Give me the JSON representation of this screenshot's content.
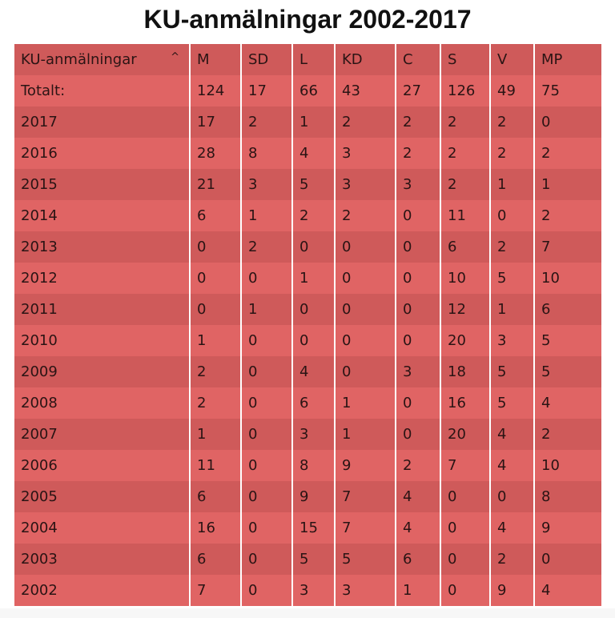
{
  "title": "KU-anmälningar 2002-2017",
  "colors": {
    "header_bg": "#cf5a5a",
    "row_odd": "#e06464",
    "row_even": "#cf5a5a",
    "separator": "#ffffff"
  },
  "table": {
    "sort_icon": "chevron-up-icon",
    "sort_glyph": "^",
    "columns": [
      "KU-anmälningar",
      "M",
      "SD",
      "L",
      "KD",
      "C",
      "S",
      "V",
      "MP"
    ],
    "rows": [
      [
        "Totalt:",
        "124",
        "17",
        "66",
        "43",
        "27",
        "126",
        "49",
        "75"
      ],
      [
        "2017",
        "17",
        "2",
        "1",
        "2",
        "2",
        "2",
        "2",
        "0"
      ],
      [
        "2016",
        "28",
        "8",
        "4",
        "3",
        "2",
        "2",
        "2",
        "2"
      ],
      [
        "2015",
        "21",
        "3",
        "5",
        "3",
        "3",
        "2",
        "1",
        "1"
      ],
      [
        "2014",
        "6",
        "1",
        "2",
        "2",
        "0",
        "11",
        "0",
        "2"
      ],
      [
        "2013",
        "0",
        "2",
        "0",
        "0",
        "0",
        "6",
        "2",
        "7"
      ],
      [
        "2012",
        "0",
        "0",
        "1",
        "0",
        "0",
        "10",
        "5",
        "10"
      ],
      [
        "2011",
        "0",
        "1",
        "0",
        "0",
        "0",
        "12",
        "1",
        "6"
      ],
      [
        "2010",
        "1",
        "0",
        "0",
        "0",
        "0",
        "20",
        "3",
        "5"
      ],
      [
        "2009",
        "2",
        "0",
        "4",
        "0",
        "3",
        "18",
        "5",
        "5"
      ],
      [
        "2008",
        "2",
        "0",
        "6",
        "1",
        "0",
        "16",
        "5",
        "4"
      ],
      [
        "2007",
        "1",
        "0",
        "3",
        "1",
        "0",
        "20",
        "4",
        "2"
      ],
      [
        "2006",
        "11",
        "0",
        "8",
        "9",
        "2",
        "7",
        "4",
        "10"
      ],
      [
        "2005",
        "6",
        "0",
        "9",
        "7",
        "4",
        "0",
        "0",
        "8"
      ],
      [
        "2004",
        "16",
        "0",
        "15",
        "7",
        "4",
        "0",
        "4",
        "9"
      ],
      [
        "2003",
        "6",
        "0",
        "5",
        "5",
        "6",
        "0",
        "2",
        "0"
      ],
      [
        "2002",
        "7",
        "0",
        "3",
        "3",
        "1",
        "0",
        "9",
        "4"
      ]
    ]
  },
  "chart_data": {
    "type": "table",
    "title": "KU-anmälningar 2002-2017",
    "columns": [
      "KU-anmälningar",
      "M",
      "SD",
      "L",
      "KD",
      "C",
      "S",
      "V",
      "MP"
    ],
    "totals": {
      "label": "Totalt:",
      "values": [
        124,
        17,
        66,
        43,
        27,
        126,
        49,
        75
      ]
    },
    "categories": [
      "2017",
      "2016",
      "2015",
      "2014",
      "2013",
      "2012",
      "2011",
      "2010",
      "2009",
      "2008",
      "2007",
      "2006",
      "2005",
      "2004",
      "2003",
      "2002"
    ],
    "series": [
      {
        "name": "M",
        "values": [
          17,
          28,
          21,
          6,
          0,
          0,
          0,
          1,
          2,
          2,
          1,
          11,
          6,
          16,
          6,
          7
        ]
      },
      {
        "name": "SD",
        "values": [
          2,
          8,
          3,
          1,
          2,
          0,
          1,
          0,
          0,
          0,
          0,
          0,
          0,
          0,
          0,
          0
        ]
      },
      {
        "name": "L",
        "values": [
          1,
          4,
          5,
          2,
          0,
          1,
          0,
          0,
          4,
          6,
          3,
          8,
          9,
          15,
          5,
          3
        ]
      },
      {
        "name": "KD",
        "values": [
          2,
          3,
          3,
          2,
          0,
          0,
          0,
          0,
          0,
          1,
          1,
          9,
          7,
          7,
          5,
          3
        ]
      },
      {
        "name": "C",
        "values": [
          2,
          2,
          3,
          0,
          0,
          0,
          0,
          0,
          3,
          0,
          0,
          2,
          4,
          4,
          6,
          1
        ]
      },
      {
        "name": "S",
        "values": [
          2,
          2,
          2,
          11,
          6,
          10,
          12,
          20,
          18,
          16,
          20,
          7,
          0,
          0,
          0,
          0
        ]
      },
      {
        "name": "V",
        "values": [
          2,
          2,
          1,
          0,
          2,
          5,
          1,
          3,
          5,
          5,
          4,
          4,
          0,
          4,
          2,
          9
        ]
      },
      {
        "name": "MP",
        "values": [
          0,
          2,
          1,
          2,
          7,
          10,
          6,
          5,
          5,
          4,
          2,
          10,
          8,
          9,
          0,
          4
        ]
      }
    ]
  }
}
